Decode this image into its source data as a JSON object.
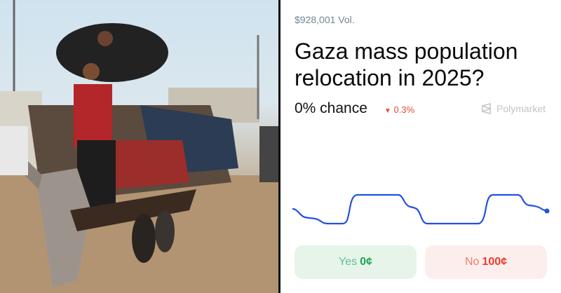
{
  "market": {
    "volume": "$928,001 Vol.",
    "title": "Gaza mass population relocation in 2025?",
    "chance": "0% chance",
    "change": "0.3%",
    "change_direction": "down",
    "brand": "Polymarket",
    "yes_label": "Yes",
    "yes_price": "0¢",
    "no_label": "No",
    "no_price": "100¢"
  },
  "colors": {
    "line": "#2350e0",
    "yes": "#21a456",
    "no": "#ee3b2b"
  },
  "icons": [
    "triangle-down-icon",
    "polymarket-logo-icon"
  ],
  "photo": {
    "description_alt": ""
  }
}
